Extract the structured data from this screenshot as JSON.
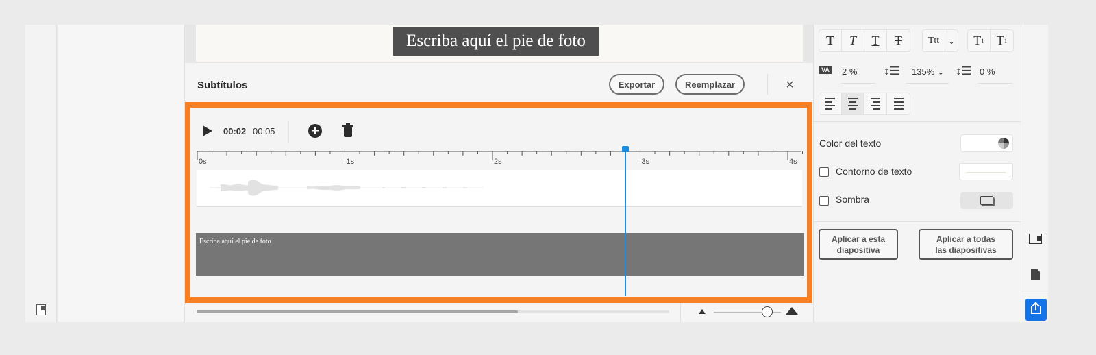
{
  "slide": {
    "caption": "Escriba aquí el pie de foto"
  },
  "subtitles_panel": {
    "title": "Subtítulos",
    "export_label": "Exportar",
    "replace_label": "Reemplazar",
    "close_icon": "×",
    "current_time": "00:02",
    "total_time": "00:05",
    "ruler_labels": [
      "0s",
      "1s",
      "2s",
      "3s",
      "4s"
    ],
    "playhead_seconds": 2.9,
    "subtitle_text": "Escriba aquí el pie de foto",
    "scroll_fraction": 0.68,
    "zoom_fraction": 0.8
  },
  "format_panel": {
    "style_buttons": [
      "bold",
      "italic",
      "underline",
      "strikethrough"
    ],
    "case_label": "Ttt",
    "char_spacing": "2 %",
    "line_spacing": "135%",
    "paragraph_spacing": "0 %",
    "alignments": [
      "left",
      "center",
      "right",
      "justify"
    ],
    "selected_alignment": "center",
    "text_color_label": "Color del texto",
    "outline_label": "Contorno de texto",
    "outline_checked": false,
    "shadow_label": "Sombra",
    "shadow_checked": false,
    "apply_this_label": "Aplicar a esta diapositiva",
    "apply_all_label": "Aplicar a todas las diapositivas"
  },
  "colors": {
    "accent": "#f58025",
    "playhead": "#1a8de0",
    "share": "#1473e6"
  }
}
